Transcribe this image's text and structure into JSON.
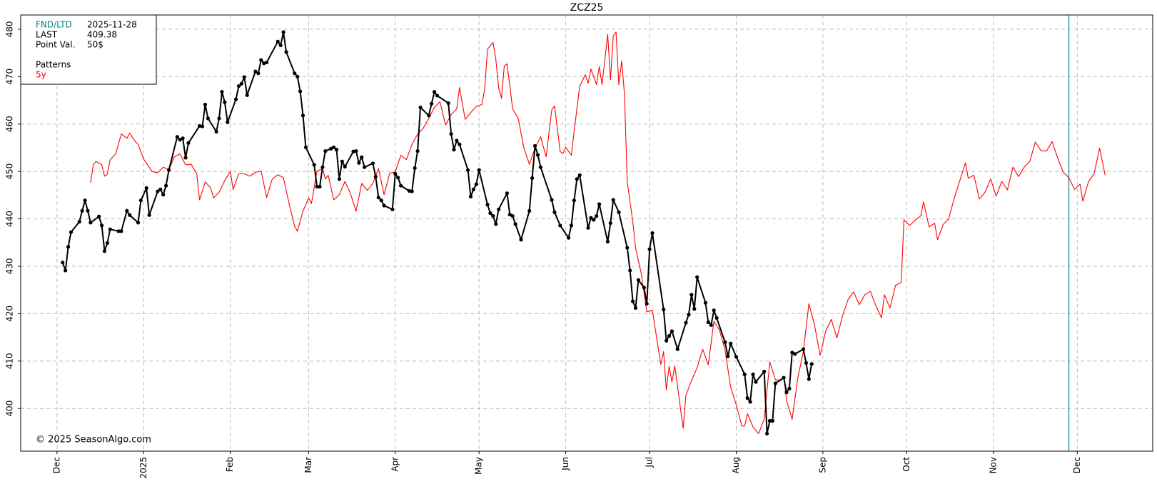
{
  "chart_data": {
    "type": "line",
    "title": "ZCZ25",
    "xlim": [
      -13,
      392
    ],
    "ylim": [
      391,
      483
    ],
    "xticks": [
      {
        "value": 0,
        "label": "Dec"
      },
      {
        "value": 31,
        "label": "2025"
      },
      {
        "value": 62,
        "label": "Feb"
      },
      {
        "value": 90,
        "label": "Mar"
      },
      {
        "value": 121,
        "label": "Apr"
      },
      {
        "value": 151,
        "label": "May"
      },
      {
        "value": 182,
        "label": "Jun"
      },
      {
        "value": 212,
        "label": "Jul"
      },
      {
        "value": 243,
        "label": "Aug"
      },
      {
        "value": 274,
        "label": "Sep"
      },
      {
        "value": 304,
        "label": "Oct"
      },
      {
        "value": 335,
        "label": "Nov"
      },
      {
        "value": 365,
        "label": "Dec"
      }
    ],
    "yticks": [
      400,
      410,
      420,
      430,
      440,
      450,
      460,
      470,
      480
    ],
    "grid": true,
    "info": [
      {
        "label": "FND/LTD",
        "value": "2025-11-28",
        "color": "#008080"
      },
      {
        "label": "LAST",
        "value": 409.38
      },
      {
        "label": "Point Val.",
        "value": "50$"
      }
    ],
    "legend_title": "Patterns",
    "vline": {
      "x": 362,
      "color": "#008080"
    },
    "copyright": "© 2025 SeasonAlgo.com",
    "series": [
      {
        "color": "#000000",
        "markers": true,
        "x": [
          2,
          3,
          4,
          5,
          8,
          9,
          10,
          11,
          12,
          15,
          16,
          17,
          18,
          19,
          22,
          23,
          25,
          26,
          29,
          30,
          32,
          33,
          36,
          37,
          38,
          39,
          40,
          43,
          44,
          45,
          46,
          47,
          51,
          52,
          53,
          54,
          57,
          58,
          59,
          60,
          61,
          64,
          65,
          66,
          67,
          68,
          71,
          72,
          73,
          74,
          75,
          79,
          80,
          81,
          82,
          85,
          86,
          87,
          88,
          89,
          92,
          93,
          94,
          95,
          96,
          98,
          99,
          100,
          101,
          102,
          103,
          106,
          107,
          108,
          109,
          110,
          113,
          114,
          115,
          116,
          117,
          120,
          121,
          122,
          123,
          126,
          127,
          128,
          129,
          130,
          133,
          134,
          135,
          136,
          140,
          141,
          142,
          143,
          144,
          147,
          148,
          149,
          150,
          151,
          154,
          155,
          156,
          157,
          158,
          161,
          162,
          163,
          164,
          166,
          169,
          170,
          171,
          172,
          173,
          177,
          178,
          180,
          183,
          184,
          185,
          186,
          187,
          190,
          191,
          192,
          193,
          194,
          197,
          198,
          199,
          201,
          204,
          205,
          206,
          207,
          208,
          210,
          211,
          212,
          213,
          217,
          218,
          219,
          220,
          222,
          225,
          226,
          227,
          228,
          229,
          232,
          233,
          234,
          235,
          236,
          239,
          240,
          241,
          243,
          246,
          247,
          248,
          249,
          250,
          253,
          254,
          255,
          256,
          257,
          260,
          261,
          262,
          263,
          264,
          267,
          268,
          269,
          270
        ],
        "values": [
          430.8,
          429.1,
          434.1,
          437.2,
          439.4,
          441.7,
          443.9,
          441.7,
          439.2,
          440.5,
          438.6,
          433.2,
          434.9,
          437.8,
          437.4,
          437.4,
          441.7,
          440.8,
          439.2,
          443.9,
          446.5,
          440.8,
          445.8,
          446.2,
          445.1,
          447.0,
          450.3,
          457.3,
          456.7,
          457.0,
          452.9,
          456.0,
          459.6,
          459.5,
          464.1,
          461.2,
          458.4,
          461.2,
          466.8,
          464.6,
          460.4,
          465.2,
          468.0,
          468.5,
          469.9,
          466.1,
          471.1,
          470.7,
          473.5,
          472.8,
          473.0,
          477.4,
          476.6,
          479.4,
          475.2,
          470.7,
          470.0,
          466.9,
          461.8,
          455.1,
          451.4,
          446.8,
          446.8,
          450.9,
          454.3,
          454.8,
          455.1,
          454.6,
          448.4,
          452.1,
          451.0,
          454.2,
          454.3,
          451.8,
          453.0,
          450.9,
          451.7,
          448.9,
          444.5,
          443.9,
          442.8,
          442.0,
          449.5,
          448.7,
          447.0,
          445.9,
          445.8,
          450.7,
          454.3,
          463.5,
          461.8,
          464.3,
          466.8,
          466.0,
          464.4,
          457.9,
          454.6,
          456.5,
          455.7,
          450.3,
          444.7,
          446.2,
          447.3,
          450.3,
          443.0,
          441.2,
          440.6,
          438.9,
          442.0,
          445.4,
          440.9,
          440.6,
          438.9,
          435.6,
          441.7,
          448.6,
          455.4,
          453.5,
          450.9,
          444.0,
          441.4,
          438.6,
          436.0,
          438.6,
          443.9,
          448.4,
          449.2,
          438.1,
          440.2,
          439.8,
          440.6,
          443.1,
          435.2,
          439.1,
          444.0,
          441.4,
          433.9,
          429.1,
          422.6,
          421.2,
          427.1,
          425.5,
          422.1,
          433.6,
          437.0,
          420.9,
          414.3,
          415.3,
          416.3,
          412.5,
          418.1,
          419.8,
          424.0,
          421.0,
          427.7,
          422.3,
          418.2,
          417.6,
          420.7,
          419.1,
          414.0,
          411.0,
          413.7,
          410.9,
          407.2,
          402.2,
          401.4,
          407.2,
          405.6,
          407.8,
          394.7,
          397.4,
          397.4,
          405.3,
          406.5,
          403.4,
          404.2,
          411.8,
          411.5,
          412.5,
          409.6,
          406.2,
          409.4
        ]
      },
      {
        "name": "5y",
        "color": "#ff0000",
        "x": [
          12,
          13,
          14,
          16,
          17,
          18,
          19,
          21,
          23,
          25,
          26,
          28,
          29,
          31,
          34,
          36,
          38,
          40,
          42,
          44,
          46,
          48,
          50,
          51,
          53,
          55,
          56,
          58,
          60,
          62,
          63,
          65,
          67,
          69,
          71,
          73,
          75,
          77,
          79,
          81,
          83,
          85,
          86,
          88,
          90,
          91,
          93,
          95,
          96,
          97,
          99,
          101,
          103,
          105,
          107,
          109,
          111,
          113,
          115,
          117,
          119,
          121,
          123,
          125,
          127,
          129,
          131,
          133,
          135,
          137,
          139,
          141,
          143,
          144,
          146,
          148,
          150,
          152,
          153,
          154,
          156,
          157,
          158,
          159,
          160,
          161,
          163,
          165,
          167,
          169,
          171,
          173,
          175,
          177,
          178,
          180,
          181,
          182,
          184,
          185,
          187,
          189,
          190,
          191,
          193,
          194,
          195,
          197,
          198,
          199,
          200,
          201,
          202,
          203,
          204,
          206,
          207,
          209,
          211,
          213,
          216,
          217,
          218,
          219,
          220,
          221,
          224,
          225,
          227,
          229,
          231,
          233,
          235,
          237,
          239,
          241,
          243,
          245,
          246,
          247,
          249,
          251,
          253,
          255,
          257,
          259,
          260,
          261,
          263,
          265,
          267,
          269,
          271,
          273,
          275,
          277,
          279,
          281,
          283,
          285,
          287,
          289,
          291,
          293,
          295,
          296,
          298,
          300,
          302,
          303,
          305,
          307,
          309,
          310,
          312,
          314,
          315,
          317,
          319,
          321,
          323,
          325,
          326,
          328,
          330,
          332,
          334,
          336,
          338,
          340,
          342,
          344,
          346,
          348,
          350,
          352,
          354,
          356,
          358,
          360,
          362,
          364,
          366,
          367,
          369,
          371,
          373,
          375
        ],
        "values": [
          447.6,
          451.5,
          452.1,
          451.4,
          449.0,
          449.4,
          452.5,
          453.7,
          457.9,
          457.0,
          458.1,
          456.3,
          455.7,
          452.6,
          450.0,
          449.7,
          450.9,
          450.4,
          453.1,
          453.7,
          451.4,
          451.5,
          449.5,
          444.0,
          447.8,
          446.5,
          444.4,
          445.6,
          448.1,
          450.0,
          446.2,
          449.5,
          449.5,
          449.0,
          449.8,
          450.1,
          444.5,
          448.4,
          449.3,
          448.7,
          443.3,
          438.4,
          437.4,
          441.6,
          444.4,
          443.2,
          450.1,
          450.6,
          448.4,
          449.2,
          444.0,
          445.1,
          447.9,
          445.3,
          441.6,
          447.5,
          446.0,
          447.5,
          450.6,
          445.1,
          449.6,
          449.9,
          453.4,
          452.5,
          455.7,
          457.9,
          459.1,
          461.2,
          463.5,
          464.7,
          459.8,
          462.0,
          463.2,
          467.7,
          461.0,
          462.4,
          463.7,
          464.1,
          467.4,
          475.8,
          477.2,
          473.6,
          467.7,
          465.4,
          472.2,
          472.7,
          463.2,
          461.2,
          455.0,
          451.5,
          455.0,
          457.3,
          453.1,
          463.0,
          463.8,
          454.2,
          453.8,
          455.1,
          453.4,
          458.5,
          468.0,
          470.4,
          468.6,
          471.6,
          468.3,
          472.1,
          468.3,
          478.9,
          469.3,
          478.6,
          479.4,
          468.3,
          473.3,
          466.3,
          447.8,
          439.4,
          433.8,
          428.5,
          420.4,
          420.7,
          409.3,
          412.0,
          403.9,
          408.9,
          405.6,
          409.0,
          395.8,
          402.8,
          405.9,
          408.6,
          412.5,
          409.2,
          418.4,
          416.5,
          412.3,
          404.5,
          400.8,
          396.3,
          396.3,
          398.9,
          396.1,
          394.7,
          397.8,
          409.8,
          406.1,
          405.9,
          406.8,
          401.7,
          397.7,
          406.4,
          412.0,
          422.1,
          417.6,
          411.2,
          416.3,
          418.8,
          414.9,
          419.5,
          423.0,
          424.6,
          421.9,
          424.0,
          424.7,
          421.6,
          419.1,
          424.0,
          421.2,
          426.0,
          426.6,
          439.8,
          438.6,
          439.7,
          440.6,
          443.6,
          438.3,
          439.1,
          435.6,
          438.8,
          440.0,
          444.4,
          448.1,
          451.8,
          448.6,
          449.2,
          444.2,
          445.6,
          448.4,
          444.8,
          447.9,
          446.1,
          450.9,
          448.9,
          450.9,
          452.1,
          456.2,
          454.4,
          454.3,
          456.3,
          452.8,
          449.8,
          448.7,
          446.2,
          447.3,
          443.7,
          447.8,
          449.5,
          454.9,
          449.2
        ]
      }
    ]
  }
}
